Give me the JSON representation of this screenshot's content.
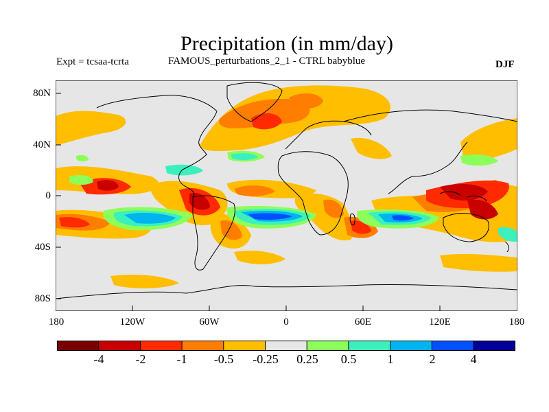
{
  "title": "Precipitation (in mm/day)",
  "subtitle_left": "Expt = tcsaa-tcrta",
  "subtitle_center": "FAMOUS_perturbations_2_1 - CTRL babyblue",
  "subtitle_right": "DJF",
  "y_ticks": [
    "80N",
    "40N",
    "0",
    "40S",
    "80S"
  ],
  "x_ticks": [
    "180",
    "120W",
    "60W",
    "0",
    "60E",
    "120E",
    "180"
  ],
  "legend": {
    "colors": [
      "#7a0000",
      "#c80000",
      "#ff2a00",
      "#ff7d00",
      "#ffbe00",
      "#e6e6e6",
      "#8cff5a",
      "#3cf0be",
      "#00b4f0",
      "#0050ff",
      "#000096"
    ],
    "labels": [
      "-4",
      "-2",
      "-1",
      "-0.5",
      "-0.25",
      "0.25",
      "0.5",
      "1",
      "2",
      "4"
    ]
  },
  "colors": {
    "land_neutral": "#e6e6e6",
    "coast": "#000000"
  }
}
